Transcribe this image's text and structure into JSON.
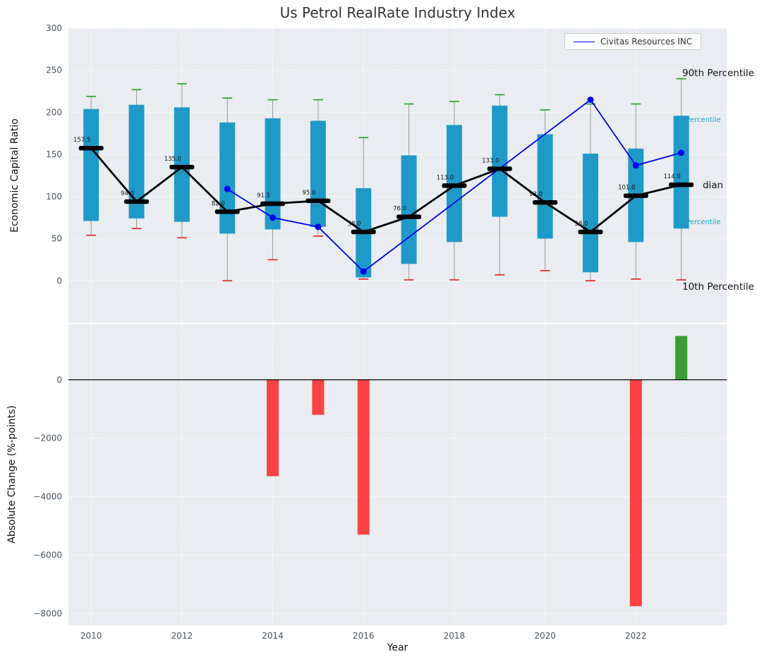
{
  "colors": {
    "figure_bg": "#ffffff",
    "panel_bg": "#e9edf1",
    "grid": "#ffffff",
    "box_fill": "#1f9ac8",
    "whisker": "#999999",
    "cap_top_green": "#2aa42a",
    "cap_bottom_red": "#e22929",
    "median_black": "#000000",
    "company_blue": "#0000ee",
    "bar_negative_red": "#fa4242",
    "bar_positive_green": "#379f36",
    "tick_label": "#46535e",
    "annotation_teal": "#17a5c9",
    "annotation_black": "#111111",
    "title_color": "#333333"
  },
  "chart_data": [
    {
      "type": "boxplot",
      "title": "Us Petrol RealRate Industry Index",
      "xlabel": "",
      "ylabel": "Economic Capital Ratio",
      "xlim": [
        2009.5,
        2024.0
      ],
      "ylim": [
        -50,
        300
      ],
      "grid": true,
      "legend_position": "upper right",
      "yticks": [
        0,
        50,
        100,
        150,
        200,
        250,
        300
      ],
      "ytick_labels": [
        "0",
        "50",
        "100",
        "150",
        "200",
        "250",
        "300"
      ],
      "xticks": [
        2010,
        2012,
        2014,
        2016,
        2018,
        2020,
        2022
      ],
      "xtick_labels": [
        "2010",
        "2012",
        "2014",
        "2016",
        "2018",
        "2020",
        "2022"
      ],
      "right_labels": [
        "90th Percentile",
        "75th Percentile",
        "Median",
        "25th Percentile",
        "10th Percentile"
      ],
      "boxes": [
        {
          "year": 2010,
          "p10": 54,
          "q1": 71,
          "median": 157.5,
          "q3": 204,
          "p90": 219,
          "label": "157.5"
        },
        {
          "year": 2011,
          "p10": 62,
          "q1": 74,
          "median": 94.0,
          "q3": 209,
          "p90": 227,
          "label": "94.0"
        },
        {
          "year": 2012,
          "p10": 51,
          "q1": 70,
          "median": 135.0,
          "q3": 206,
          "p90": 234,
          "label": "135.0"
        },
        {
          "year": 2013,
          "p10": 0,
          "q1": 56,
          "median": 82.0,
          "q3": 188,
          "p90": 217,
          "label": "82.0"
        },
        {
          "year": 2014,
          "p10": 25,
          "q1": 61,
          "median": 91.5,
          "q3": 193,
          "p90": 215,
          "label": "91.5"
        },
        {
          "year": 2015,
          "p10": 53,
          "q1": 64,
          "median": 95.0,
          "q3": 190,
          "p90": 215,
          "label": "95.0"
        },
        {
          "year": 2016,
          "p10": 2,
          "q1": 4,
          "median": 58.0,
          "q3": 110,
          "p90": 170,
          "label": "58.0"
        },
        {
          "year": 2017,
          "p10": 1,
          "q1": 20,
          "median": 76.0,
          "q3": 149,
          "p90": 210,
          "label": "76.0"
        },
        {
          "year": 2018,
          "p10": 1,
          "q1": 46,
          "median": 113.0,
          "q3": 185,
          "p90": 213,
          "label": "113.0"
        },
        {
          "year": 2019,
          "p10": 7,
          "q1": 76,
          "median": 133.0,
          "q3": 208,
          "p90": 221,
          "label": "133.0"
        },
        {
          "year": 2020,
          "p10": 12,
          "q1": 50,
          "median": 93.0,
          "q3": 174,
          "p90": 203,
          "label": "93.0"
        },
        {
          "year": 2021,
          "p10": 0,
          "q1": 10,
          "median": 58.0,
          "q3": 151,
          "p90": 210,
          "label": "58.0"
        },
        {
          "year": 2022,
          "p10": 2,
          "q1": 46,
          "median": 101.0,
          "q3": 157,
          "p90": 210,
          "label": "101.0"
        },
        {
          "year": 2023,
          "p10": 1,
          "q1": 62,
          "median": 114.0,
          "q3": 196,
          "p90": 240,
          "label": "114.0"
        }
      ],
      "company_series": {
        "name": "Civitas Resources INC",
        "x": [
          2013,
          2014,
          2015,
          2016,
          2021,
          2022,
          2023
        ],
        "y": [
          109,
          75,
          64,
          11,
          215,
          137,
          152
        ]
      }
    },
    {
      "type": "bar",
      "title": "",
      "xlabel": "Year",
      "ylabel": "Absolute Change (%-points)",
      "xlim": [
        2009.5,
        2024.0
      ],
      "ylim": [
        -8400,
        1900
      ],
      "grid": true,
      "yticks": [
        0,
        -2000,
        -4000,
        -6000,
        -8000
      ],
      "ytick_labels": [
        "0",
        "−2000",
        "−4000",
        "−6000",
        "−8000"
      ],
      "xticks": [
        2010,
        2012,
        2014,
        2016,
        2018,
        2020,
        2022
      ],
      "xtick_labels": [
        "2010",
        "2012",
        "2014",
        "2016",
        "2018",
        "2020",
        "2022"
      ],
      "categories": [
        2010,
        2011,
        2012,
        2013,
        2014,
        2015,
        2016,
        2017,
        2018,
        2019,
        2020,
        2021,
        2022,
        2023
      ],
      "values": [
        0,
        0,
        0,
        0,
        -3300,
        -1200,
        -5300,
        0,
        0,
        0,
        0,
        0,
        -7750,
        1500
      ]
    }
  ]
}
